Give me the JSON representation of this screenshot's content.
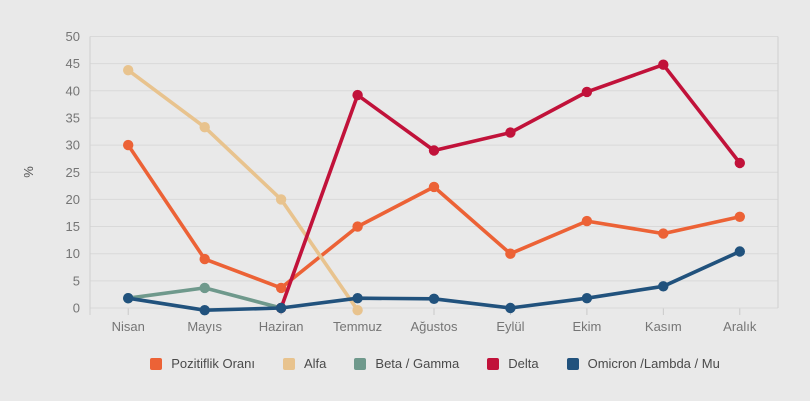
{
  "colors": {
    "background": "#e9e9e9",
    "gridline": "#d9d9d9",
    "axis_line": "#d0d0d0",
    "tick_mark": "#c9c9c9",
    "axis_text": "#757575",
    "legend_text": "#4a4a4a"
  },
  "chart_data": {
    "type": "line",
    "title": "",
    "xlabel": "",
    "ylabel": "%",
    "ylim": [
      0,
      50
    ],
    "y_tick_step": 5,
    "grid": true,
    "legend_position": "bottom",
    "categories": [
      "Nisan",
      "Mayıs",
      "Haziran",
      "Temmuz",
      "Ağustos",
      "Eylül",
      "Ekim",
      "Kasım",
      "Aralık"
    ],
    "series": [
      {
        "name": "Pozitiflik Oranı",
        "slug": "pozitiflik-orani",
        "color": "#ec6236",
        "values": [
          30,
          9,
          3.7,
          15,
          22.3,
          10,
          16,
          13.7,
          16.8
        ]
      },
      {
        "name": "Alfa",
        "slug": "alfa",
        "color": "#e8c38e",
        "values": [
          43.8,
          33.3,
          20,
          -0.4,
          null,
          null,
          null,
          null,
          null
        ]
      },
      {
        "name": "Beta / Gamma",
        "slug": "beta-gamma",
        "color": "#6f998c",
        "values": [
          1.8,
          3.7,
          0,
          null,
          null,
          null,
          null,
          null,
          null
        ]
      },
      {
        "name": "Delta",
        "slug": "delta",
        "color": "#c1123a",
        "values": [
          null,
          null,
          0,
          39.2,
          29,
          32.3,
          39.8,
          44.8,
          26.7
        ]
      },
      {
        "name": "Omicron /Lambda / Mu",
        "slug": "omicron-lambda-mu",
        "color": "#21527d",
        "values": [
          1.8,
          -0.4,
          0,
          1.8,
          1.7,
          0,
          1.8,
          4,
          10.4
        ]
      }
    ]
  }
}
